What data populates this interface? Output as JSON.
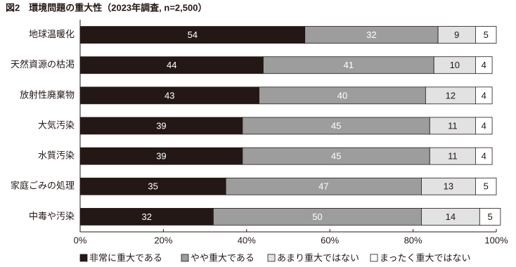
{
  "chart_data": {
    "type": "stacked-bar-horizontal",
    "title": "図2　環境問題の重大性（2023年調査, n=2,500）",
    "categories": [
      "地球温暖化",
      "天然資源の枯渇",
      "放射性廃棄物",
      "大気汚染",
      "水質汚染",
      "家庭ごみの処理",
      "中毒や汚染"
    ],
    "series": [
      {
        "name": "非常に重大である",
        "color": "#231815",
        "values": [
          54,
          44,
          43,
          39,
          39,
          35,
          32
        ]
      },
      {
        "name": "やや重大である",
        "color": "#9d9d9d",
        "values": [
          32,
          41,
          40,
          45,
          45,
          47,
          50
        ]
      },
      {
        "name": "あまり重大ではない",
        "color": "#e2e2e2",
        "values": [
          9,
          10,
          12,
          11,
          11,
          13,
          14
        ]
      },
      {
        "name": "まったく重大ではない",
        "color": "#ffffff",
        "values": [
          5,
          4,
          4,
          4,
          4,
          5,
          5
        ]
      }
    ],
    "xlim": [
      0,
      100
    ],
    "xticks": [
      {
        "value": 0,
        "label": "0%"
      },
      {
        "value": 20,
        "label": "20%"
      },
      {
        "value": 40,
        "label": "40%"
      },
      {
        "value": 60,
        "label": "60%"
      },
      {
        "value": 80,
        "label": "80%"
      },
      {
        "value": 100,
        "label": "100%"
      }
    ]
  }
}
